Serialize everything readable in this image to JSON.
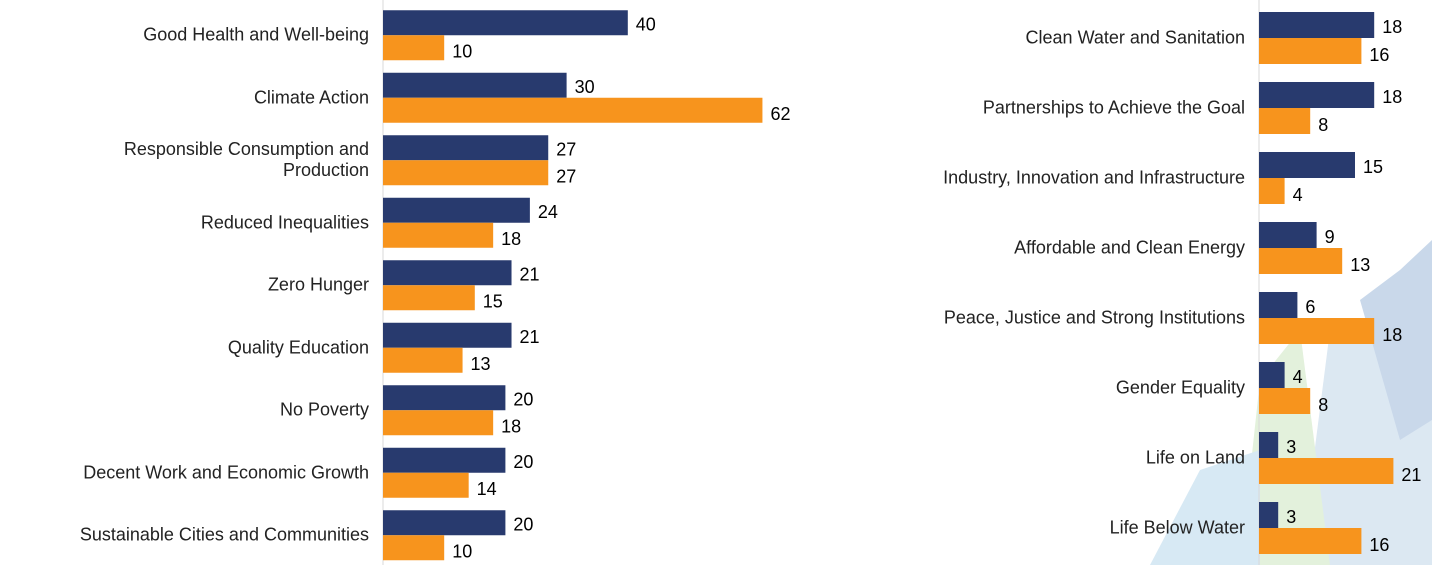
{
  "chart_data": [
    {
      "type": "bar",
      "orientation": "horizontal",
      "categories": [
        "Good Health and Well-being",
        "Climate Action",
        "Responsible Consumption and Production",
        "Reduced Inequalities",
        "Zero Hunger",
        "Quality Education",
        "No Poverty",
        "Decent Work and Economic Growth",
        "Sustainable Cities and Communities"
      ],
      "series": [
        {
          "color": "#283a6e",
          "values": [
            40,
            30,
            27,
            24,
            21,
            21,
            20,
            20,
            20
          ]
        },
        {
          "color": "#f7941d",
          "values": [
            10,
            62,
            27,
            18,
            15,
            13,
            18,
            14,
            10
          ]
        }
      ]
    },
    {
      "type": "bar",
      "orientation": "horizontal",
      "categories": [
        "Clean Water and Sanitation",
        "Partnerships to Achieve the Goal",
        "Industry, Innovation and Infrastructure",
        "Affordable and Clean Energy",
        "Peace, Justice and Strong Institutions",
        "Gender Equality",
        "Life on Land",
        "Life Below Water"
      ],
      "series": [
        {
          "color": "#283a6e",
          "values": [
            18,
            18,
            15,
            9,
            6,
            4,
            3,
            3
          ]
        },
        {
          "color": "#f7941d",
          "values": [
            16,
            8,
            4,
            13,
            18,
            8,
            21,
            16
          ]
        }
      ]
    }
  ]
}
